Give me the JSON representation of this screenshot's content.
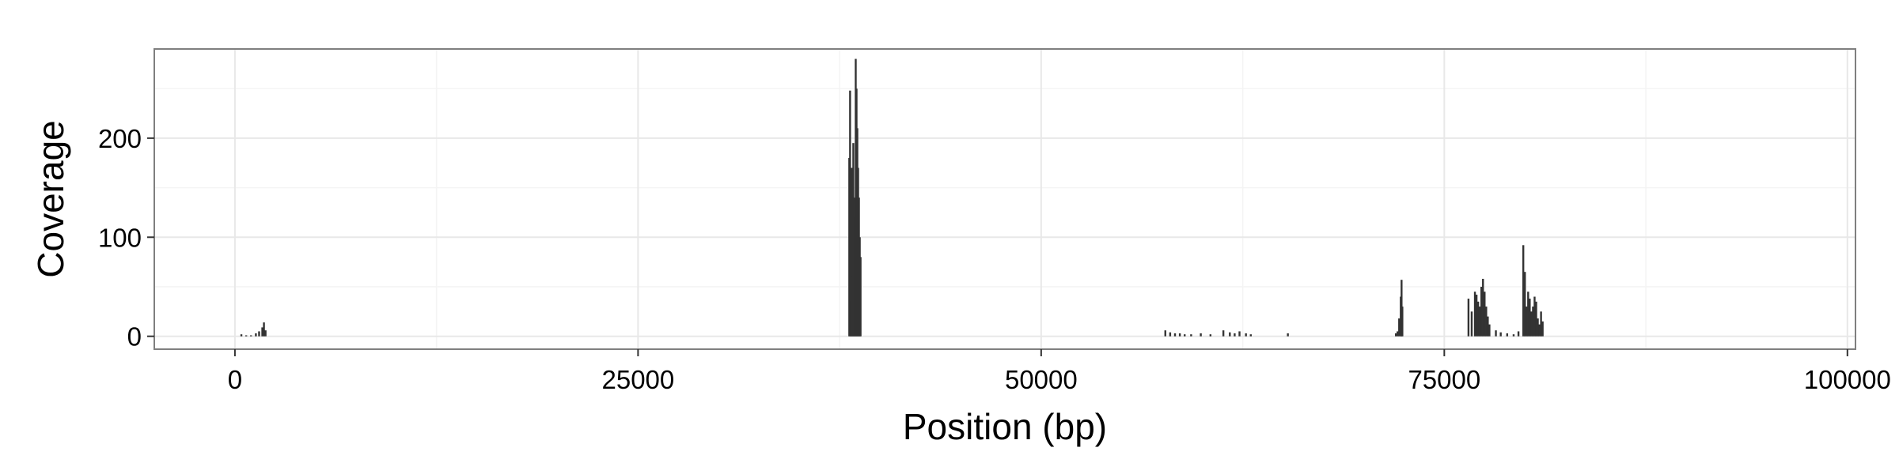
{
  "chart_data": {
    "type": "bar",
    "title": "",
    "xlabel": "Position (bp)",
    "ylabel": "Coverage",
    "xlim": [
      -5000,
      100500
    ],
    "ylim": [
      -13,
      290
    ],
    "x_ticks": [
      0,
      25000,
      50000,
      75000,
      100000
    ],
    "x_tick_labels": [
      "0",
      "25000",
      "50000",
      "75000",
      "100000"
    ],
    "y_ticks": [
      0,
      100,
      200
    ],
    "y_tick_labels": [
      "0",
      "100",
      "200"
    ],
    "grid": true,
    "legend": "none",
    "bar_color": "#333333",
    "series": [
      {
        "x": [
          400,
          700,
          1000,
          1300,
          1500,
          1700,
          1800,
          1900,
          38100,
          38150,
          38200,
          38250,
          38300,
          38350,
          38400,
          38450,
          38500,
          38550,
          38600,
          38650,
          38700,
          38750,
          38800,
          57700,
          58000,
          58300,
          58600,
          58900,
          59300,
          59900,
          60500,
          61300,
          61700,
          62000,
          62300,
          62700,
          63000,
          65300,
          72000,
          72100,
          72200,
          72300,
          72350,
          72400,
          76500,
          76700,
          76900,
          77000,
          77100,
          77200,
          77300,
          77400,
          77500,
          77600,
          77700,
          77800,
          78200,
          78500,
          78900,
          79300,
          79600,
          79900,
          80000,
          80100,
          80200,
          80300,
          80400,
          80500,
          80600,
          80700,
          80800,
          80900,
          81000,
          81100
        ],
        "y": [
          2,
          1,
          1,
          3,
          5,
          9,
          14,
          6,
          180,
          248,
          35,
          170,
          60,
          195,
          140,
          120,
          280,
          250,
          210,
          170,
          140,
          100,
          80,
          6,
          4,
          3,
          3,
          2,
          2,
          3,
          2,
          6,
          4,
          3,
          5,
          3,
          2,
          3,
          3,
          5,
          18,
          40,
          57,
          30,
          38,
          25,
          45,
          42,
          35,
          30,
          50,
          58,
          45,
          30,
          20,
          12,
          6,
          4,
          3,
          2,
          5,
          92,
          65,
          30,
          45,
          38,
          25,
          30,
          40,
          35,
          18,
          12,
          25,
          15
        ]
      }
    ]
  }
}
